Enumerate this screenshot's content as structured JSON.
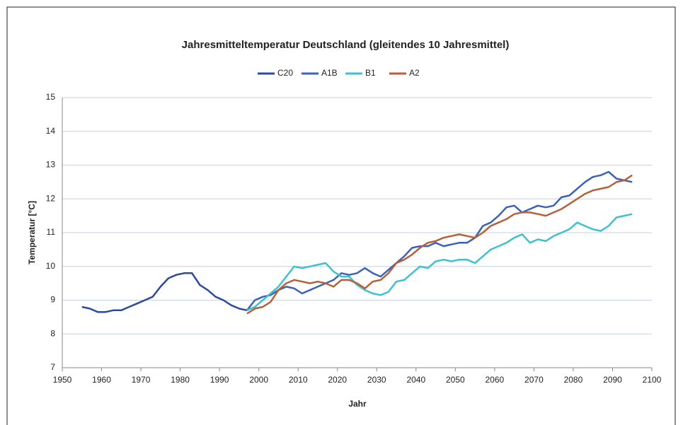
{
  "chart_data": {
    "type": "line",
    "title": "Jahresmitteltemperatur Deutschland (gleitendes 10 Jahresmittel)",
    "xlabel": "Jahr",
    "ylabel": "Temperatur [°C]",
    "xlim": [
      1950,
      2100
    ],
    "xticks": [
      1950,
      1960,
      1970,
      1980,
      1990,
      2000,
      2010,
      2020,
      2030,
      2040,
      2050,
      2060,
      2070,
      2080,
      2090,
      2100
    ],
    "ylim": [
      7,
      15
    ],
    "yticks": [
      7,
      8,
      9,
      10,
      11,
      12,
      13,
      14,
      15
    ],
    "grid": true,
    "legend": "top",
    "series": [
      {
        "name": "C20",
        "color": "#2b4aa0",
        "x": [
          1955,
          1957,
          1959,
          1961,
          1963,
          1965,
          1967,
          1969,
          1971,
          1973,
          1975,
          1977,
          1979,
          1981,
          1983,
          1985,
          1987,
          1989,
          1991,
          1993,
          1995,
          1997
        ],
        "values": [
          8.8,
          8.75,
          8.65,
          8.65,
          8.7,
          8.7,
          8.8,
          8.9,
          9.0,
          9.1,
          9.4,
          9.65,
          9.75,
          9.8,
          9.8,
          9.45,
          9.3,
          9.1,
          9.0,
          8.85,
          8.75,
          8.7
        ]
      },
      {
        "name": "A1B",
        "color": "#3b62b8",
        "x": [
          1997,
          1999,
          2001,
          2003,
          2005,
          2007,
          2009,
          2011,
          2013,
          2015,
          2017,
          2019,
          2021,
          2023,
          2025,
          2027,
          2029,
          2031,
          2033,
          2035,
          2037,
          2039,
          2041,
          2043,
          2045,
          2047,
          2049,
          2051,
          2053,
          2055,
          2057,
          2059,
          2061,
          2063,
          2065,
          2067,
          2069,
          2071,
          2073,
          2075,
          2077,
          2079,
          2081,
          2083,
          2085,
          2087,
          2089,
          2091,
          2093,
          2095
        ],
        "values": [
          8.7,
          9.0,
          9.1,
          9.15,
          9.3,
          9.4,
          9.35,
          9.2,
          9.3,
          9.4,
          9.5,
          9.6,
          9.8,
          9.75,
          9.8,
          9.95,
          9.8,
          9.7,
          9.9,
          10.1,
          10.3,
          10.55,
          10.6,
          10.6,
          10.7,
          10.6,
          10.65,
          10.7,
          10.7,
          10.85,
          11.2,
          11.3,
          11.5,
          11.75,
          11.8,
          11.6,
          11.7,
          11.8,
          11.75,
          11.8,
          12.05,
          12.1,
          12.3,
          12.5,
          12.65,
          12.7,
          12.8,
          12.6,
          12.55,
          12.5
        ]
      },
      {
        "name": "B1",
        "color": "#3fc0d0",
        "x": [
          1997,
          1999,
          2001,
          2003,
          2005,
          2007,
          2009,
          2011,
          2013,
          2015,
          2017,
          2019,
          2021,
          2023,
          2025,
          2027,
          2029,
          2031,
          2033,
          2035,
          2037,
          2039,
          2041,
          2043,
          2045,
          2047,
          2049,
          2051,
          2053,
          2055,
          2057,
          2059,
          2061,
          2063,
          2065,
          2067,
          2069,
          2071,
          2073,
          2075,
          2077,
          2079,
          2081,
          2083,
          2085,
          2087,
          2089,
          2091,
          2093,
          2095
        ],
        "values": [
          8.7,
          8.8,
          9.0,
          9.2,
          9.4,
          9.7,
          10.0,
          9.95,
          10.0,
          10.05,
          10.1,
          9.85,
          9.7,
          9.7,
          9.45,
          9.3,
          9.2,
          9.15,
          9.25,
          9.55,
          9.6,
          9.8,
          10.0,
          9.95,
          10.15,
          10.2,
          10.15,
          10.2,
          10.2,
          10.1,
          10.3,
          10.5,
          10.6,
          10.7,
          10.85,
          10.95,
          10.7,
          10.8,
          10.75,
          10.9,
          11.0,
          11.1,
          11.3,
          11.2,
          11.1,
          11.05,
          11.2,
          11.45,
          11.5,
          11.55
        ]
      },
      {
        "name": "A2",
        "color": "#b5603a",
        "x": [
          1997,
          1999,
          2001,
          2003,
          2005,
          2007,
          2009,
          2011,
          2013,
          2015,
          2017,
          2019,
          2021,
          2023,
          2025,
          2027,
          2029,
          2031,
          2033,
          2035,
          2037,
          2039,
          2041,
          2043,
          2045,
          2047,
          2049,
          2051,
          2053,
          2055,
          2057,
          2059,
          2061,
          2063,
          2065,
          2067,
          2069,
          2071,
          2073,
          2075,
          2077,
          2079,
          2081,
          2083,
          2085,
          2087,
          2089,
          2091,
          2093,
          2095
        ],
        "values": [
          8.6,
          8.75,
          8.8,
          8.95,
          9.3,
          9.5,
          9.6,
          9.55,
          9.5,
          9.55,
          9.5,
          9.4,
          9.6,
          9.6,
          9.5,
          9.35,
          9.55,
          9.6,
          9.8,
          10.1,
          10.2,
          10.35,
          10.55,
          10.7,
          10.75,
          10.85,
          10.9,
          10.95,
          10.9,
          10.85,
          11.0,
          11.2,
          11.3,
          11.4,
          11.55,
          11.6,
          11.6,
          11.55,
          11.5,
          11.6,
          11.7,
          11.85,
          12.0,
          12.15,
          12.25,
          12.3,
          12.35,
          12.5,
          12.55,
          12.7
        ]
      }
    ]
  }
}
